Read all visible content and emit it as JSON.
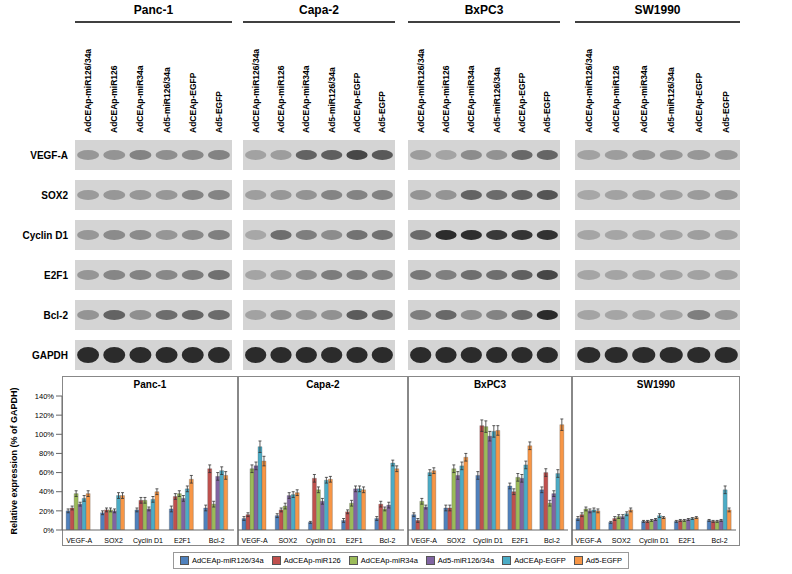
{
  "blot": {
    "cell_lines": [
      "Panc-1",
      "Capa-2",
      "BxPC3",
      "SW1990"
    ],
    "lanes": [
      "AdCEAp-miR126/34a",
      "AdCEAp-miR126",
      "AdCEAp-miR34a",
      "Ad5-miR126/34a",
      "AdCEAp-EGFP",
      "Ad5-EGFP"
    ],
    "proteins": [
      "VEGF-A",
      "SOX2",
      "Cyclin D1",
      "E2F1",
      "Bcl-2",
      "GAPDH"
    ]
  },
  "chart_data": [
    {
      "type": "bar",
      "title": "Panc-1",
      "y_label": "Relative expression (% of GAPDH)",
      "categories": [
        "VEGF-A",
        "SOX2",
        "Cyclin D1",
        "E2F1",
        "Bcl-2"
      ],
      "ylim": [
        0,
        140
      ],
      "yticks": [
        {
          "value": 0,
          "label": "0%"
        },
        {
          "value": 20,
          "label": "20%"
        },
        {
          "value": 40,
          "label": "40%"
        },
        {
          "value": 60,
          "label": "60%"
        },
        {
          "value": 80,
          "label": "80%"
        },
        {
          "value": 100,
          "label": "100%"
        },
        {
          "value": 120,
          "label": "120%"
        },
        {
          "value": 140,
          "label": "140%"
        }
      ],
      "grid": false,
      "legend": "bottom",
      "series": [
        {
          "name": "AdCEAp-miR126/34a",
          "color": "#4f81bd",
          "values": [
            20,
            18,
            21,
            22,
            23
          ],
          "errors": [
            2,
            2,
            2,
            3,
            3
          ]
        },
        {
          "name": "AdCEAp-miR126",
          "color": "#c0504d",
          "values": [
            23,
            21,
            31,
            35,
            64
          ],
          "errors": [
            2,
            2,
            3,
            3,
            4
          ]
        },
        {
          "name": "AdCEAp-miR34a",
          "color": "#9bbb59",
          "values": [
            38,
            21,
            31,
            38,
            27
          ],
          "errors": [
            3,
            2,
            3,
            3,
            3
          ]
        },
        {
          "name": "Ad5-miR126/34a",
          "color": "#8064a2",
          "values": [
            27,
            20,
            22,
            33,
            56
          ],
          "errors": [
            2,
            2,
            2,
            3,
            4
          ]
        },
        {
          "name": "AdCEAp-EGFP",
          "color": "#4bacc6",
          "values": [
            33,
            36,
            32,
            43,
            62
          ],
          "errors": [
            3,
            3,
            3,
            3,
            4
          ]
        },
        {
          "name": "Ad5-EGFP",
          "color": "#f79646",
          "values": [
            38,
            36,
            40,
            53,
            57
          ],
          "errors": [
            3,
            3,
            3,
            4,
            4
          ]
        }
      ]
    },
    {
      "type": "bar",
      "title": "Capa-2",
      "categories": [
        "VEGF-A",
        "SOX2",
        "Cyclin D1",
        "E2F1",
        "Bcl-2"
      ],
      "ylim": [
        0,
        140
      ],
      "yticks": [
        {
          "value": 0,
          "label": "0%"
        },
        {
          "value": 20,
          "label": "20%"
        },
        {
          "value": 40,
          "label": "40%"
        },
        {
          "value": 60,
          "label": "60%"
        },
        {
          "value": 80,
          "label": "80%"
        },
        {
          "value": 100,
          "label": "100%"
        },
        {
          "value": 120,
          "label": "120%"
        },
        {
          "value": 140,
          "label": "140%"
        }
      ],
      "grid": false,
      "tick_labels": "x",
      "series": [
        {
          "name": "AdCEAp-miR126/34a",
          "color": "#4f81bd",
          "values": [
            12,
            15,
            8,
            10,
            12
          ],
          "errors": [
            2,
            2,
            1,
            2,
            2
          ]
        },
        {
          "name": "AdCEAp-miR126",
          "color": "#c0504d",
          "values": [
            16,
            21,
            54,
            19,
            27
          ],
          "errors": [
            2,
            2,
            4,
            2,
            3
          ]
        },
        {
          "name": "AdCEAp-miR34a",
          "color": "#9bbb59",
          "values": [
            64,
            25,
            42,
            28,
            22
          ],
          "errors": [
            4,
            3,
            3,
            3,
            2
          ]
        },
        {
          "name": "Ad5-miR126/34a",
          "color": "#8064a2",
          "values": [
            67,
            36,
            30,
            43,
            26
          ],
          "errors": [
            4,
            3,
            3,
            3,
            3
          ]
        },
        {
          "name": "AdCEAp-EGFP",
          "color": "#4bacc6",
          "values": [
            87,
            37,
            52,
            43,
            70
          ],
          "errors": [
            6,
            3,
            3,
            3,
            3
          ]
        },
        {
          "name": "Ad5-EGFP",
          "color": "#f79646",
          "values": [
            72,
            39,
            53,
            42,
            64
          ],
          "errors": [
            5,
            3,
            3,
            3,
            3
          ]
        }
      ]
    },
    {
      "type": "bar",
      "title": "BxPC3",
      "categories": [
        "VEGF-A",
        "SOX2",
        "Cyclin D1",
        "E2F1",
        "Bcl-2"
      ],
      "ylim": [
        0,
        140
      ],
      "yticks": [
        {
          "value": 0,
          "label": "0%"
        },
        {
          "value": 20,
          "label": "20%"
        },
        {
          "value": 40,
          "label": "40%"
        },
        {
          "value": 60,
          "label": "60%"
        },
        {
          "value": 80,
          "label": "80%"
        },
        {
          "value": 100,
          "label": "100%"
        },
        {
          "value": 120,
          "label": "120%"
        },
        {
          "value": 140,
          "label": "140%"
        }
      ],
      "grid": false,
      "tick_labels": "x",
      "series": [
        {
          "name": "AdCEAp-miR126/34a",
          "color": "#4f81bd",
          "values": [
            16,
            23,
            57,
            46,
            42
          ],
          "errors": [
            2,
            3,
            4,
            3,
            3
          ]
        },
        {
          "name": "AdCEAp-miR126",
          "color": "#c0504d",
          "values": [
            10,
            23,
            109,
            40,
            60
          ],
          "errors": [
            2,
            3,
            6,
            3,
            4
          ]
        },
        {
          "name": "AdCEAp-miR34a",
          "color": "#9bbb59",
          "values": [
            30,
            64,
            108,
            55,
            28
          ],
          "errors": [
            3,
            4,
            6,
            4,
            3
          ]
        },
        {
          "name": "Ad5-miR126/34a",
          "color": "#8064a2",
          "values": [
            24,
            57,
            98,
            54,
            38
          ],
          "errors": [
            2,
            4,
            5,
            4,
            3
          ]
        },
        {
          "name": "AdCEAp-EGFP",
          "color": "#4bacc6",
          "values": [
            60,
            67,
            103,
            68,
            59
          ],
          "errors": [
            3,
            4,
            6,
            4,
            4
          ]
        },
        {
          "name": "Ad5-EGFP",
          "color": "#f79646",
          "values": [
            62,
            76,
            104,
            88,
            110
          ],
          "errors": [
            3,
            4,
            5,
            4,
            6
          ]
        }
      ]
    },
    {
      "type": "bar",
      "title": "SW1990",
      "categories": [
        "VEGF-A",
        "SOX2",
        "Cyclin D1",
        "E2F1",
        "Bcl-2"
      ],
      "ylim": [
        0,
        140
      ],
      "yticks": [
        {
          "value": 0,
          "label": "0%"
        },
        {
          "value": 20,
          "label": "20%"
        },
        {
          "value": 40,
          "label": "40%"
        },
        {
          "value": 60,
          "label": "60%"
        },
        {
          "value": 80,
          "label": "80%"
        },
        {
          "value": 100,
          "label": "100%"
        },
        {
          "value": 120,
          "label": "120%"
        },
        {
          "value": 140,
          "label": "140%"
        }
      ],
      "grid": false,
      "tick_labels": "x",
      "series": [
        {
          "name": "AdCEAp-miR126/34a",
          "color": "#4f81bd",
          "values": [
            12,
            8,
            9,
            9,
            10
          ],
          "errors": [
            2,
            1,
            1,
            1,
            1
          ]
        },
        {
          "name": "AdCEAp-miR126",
          "color": "#c0504d",
          "values": [
            16,
            12,
            9,
            10,
            9
          ],
          "errors": [
            2,
            2,
            1,
            1,
            1
          ]
        },
        {
          "name": "AdCEAp-miR34a",
          "color": "#9bbb59",
          "values": [
            22,
            14,
            10,
            10,
            9
          ],
          "errors": [
            2,
            2,
            1,
            1,
            1
          ]
        },
        {
          "name": "Ad5-miR126/34a",
          "color": "#8064a2",
          "values": [
            20,
            14,
            11,
            11,
            10
          ],
          "errors": [
            2,
            2,
            1,
            1,
            1
          ]
        },
        {
          "name": "AdCEAp-EGFP",
          "color": "#4bacc6",
          "values": [
            21,
            17,
            15,
            12,
            42
          ],
          "errors": [
            2,
            2,
            2,
            1,
            4
          ]
        },
        {
          "name": "Ad5-EGFP",
          "color": "#f79646",
          "values": [
            20,
            21,
            13,
            13,
            21
          ],
          "errors": [
            2,
            2,
            1,
            1,
            2
          ]
        }
      ]
    }
  ]
}
